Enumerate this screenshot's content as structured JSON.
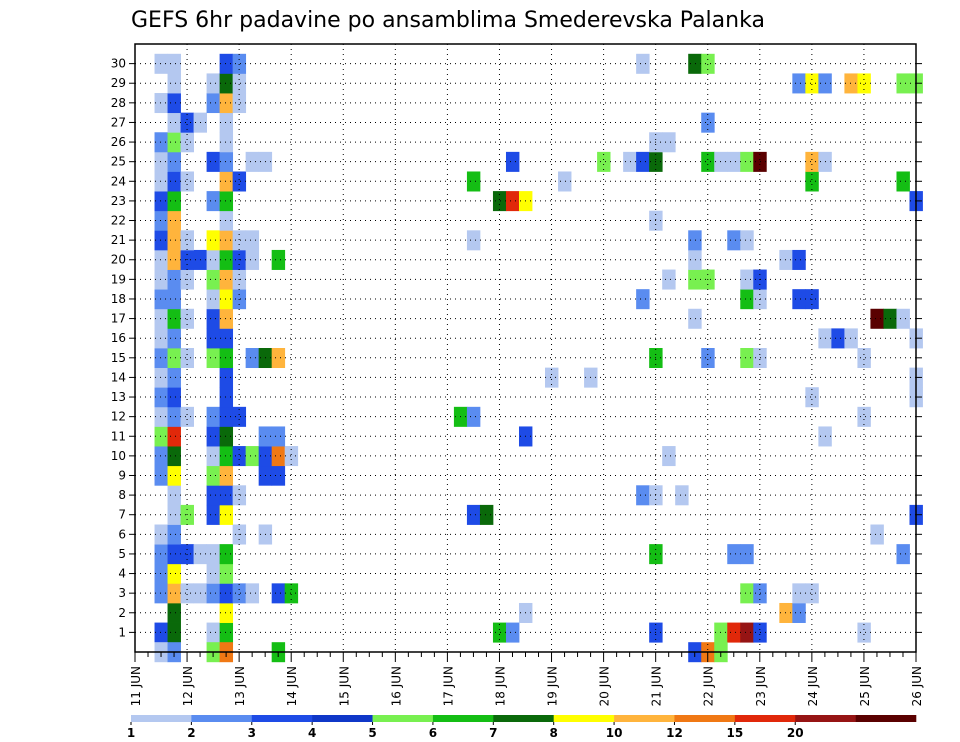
{
  "chart_data": {
    "type": "heatmap",
    "title": "GEFS 6hr padavine po ansamblima Smederevska Palanka",
    "xlabel": "",
    "ylabel": "",
    "x_tick_labels": [
      "11 JUN",
      "12 JUN",
      "13 JUN",
      "14 JUN",
      "15 JUN",
      "16 JUN",
      "17 JUN",
      "18 JUN",
      "19 JUN",
      "20 JUN",
      "21 JUN",
      "22 JUN",
      "23 JUN",
      "24 JUN",
      "25 JUN",
      "26 JUN"
    ],
    "x_steps": 60,
    "steps_per_day": 4,
    "y_tick_labels": [
      "1",
      "2",
      "3",
      "4",
      "5",
      "6",
      "7",
      "8",
      "9",
      "10",
      "11",
      "12",
      "13",
      "14",
      "15",
      "16",
      "17",
      "18",
      "19",
      "20",
      "21",
      "22",
      "23",
      "24",
      "25",
      "26",
      "27",
      "28",
      "29",
      "30"
    ],
    "grid": true,
    "legend": {
      "placement": "bottom",
      "thresholds": [
        "1",
        "2",
        "3",
        "4",
        "5",
        "6",
        "7",
        "8",
        "10",
        "12",
        "15",
        "20"
      ],
      "colors": [
        "#b4c8f0",
        "#5a8cf0",
        "#1e4be6",
        "#0f37c8",
        "#78f050",
        "#14be14",
        "#0a690a",
        "#ffff00",
        "#ffb43c",
        "#f07814",
        "#e1280a",
        "#961414",
        "#5a0000"
      ]
    },
    "cells": [
      {
        "m": 1,
        "t": 2,
        "c": 2
      },
      {
        "m": 1,
        "t": 3,
        "c": 6
      },
      {
        "m": 1,
        "t": 6,
        "c": 0
      },
      {
        "m": 1,
        "t": 7,
        "c": 5
      },
      {
        "m": 1,
        "t": 28,
        "c": 5
      },
      {
        "m": 1,
        "t": 29,
        "c": 1
      },
      {
        "m": 1,
        "t": 40,
        "c": 2
      },
      {
        "m": 1,
        "t": 45,
        "c": 4
      },
      {
        "m": 1,
        "t": 46,
        "c": 10
      },
      {
        "m": 1,
        "t": 47,
        "c": 11
      },
      {
        "m": 1,
        "t": 48,
        "c": 2
      },
      {
        "m": 1,
        "t": 56,
        "c": 0
      },
      {
        "m": 2,
        "t": 3,
        "c": 6
      },
      {
        "m": 2,
        "t": 7,
        "c": 7
      },
      {
        "m": 2,
        "t": 30,
        "c": 0
      },
      {
        "m": 2,
        "t": 50,
        "c": 8
      },
      {
        "m": 2,
        "t": 51,
        "c": 1
      },
      {
        "m": 3,
        "t": 2,
        "c": 1
      },
      {
        "m": 3,
        "t": 3,
        "c": 8
      },
      {
        "m": 3,
        "t": 4,
        "c": 0
      },
      {
        "m": 3,
        "t": 5,
        "c": 0
      },
      {
        "m": 3,
        "t": 6,
        "c": 1
      },
      {
        "m": 3,
        "t": 7,
        "c": 2
      },
      {
        "m": 3,
        "t": 8,
        "c": 1
      },
      {
        "m": 3,
        "t": 9,
        "c": 0
      },
      {
        "m": 3,
        "t": 11,
        "c": 2
      },
      {
        "m": 3,
        "t": 12,
        "c": 5
      },
      {
        "m": 3,
        "t": 47,
        "c": 4
      },
      {
        "m": 3,
        "t": 48,
        "c": 1
      },
      {
        "m": 3,
        "t": 51,
        "c": 0
      },
      {
        "m": 3,
        "t": 52,
        "c": 0
      },
      {
        "m": 4,
        "t": 2,
        "c": 1
      },
      {
        "m": 4,
        "t": 3,
        "c": 7
      },
      {
        "m": 4,
        "t": 6,
        "c": 0
      },
      {
        "m": 4,
        "t": 7,
        "c": 4
      },
      {
        "m": 5,
        "t": 2,
        "c": 1
      },
      {
        "m": 5,
        "t": 3,
        "c": 2
      },
      {
        "m": 5,
        "t": 4,
        "c": 2
      },
      {
        "m": 5,
        "t": 5,
        "c": 0
      },
      {
        "m": 5,
        "t": 6,
        "c": 0
      },
      {
        "m": 5,
        "t": 7,
        "c": 5
      },
      {
        "m": 5,
        "t": 40,
        "c": 5
      },
      {
        "m": 5,
        "t": 46,
        "c": 1
      },
      {
        "m": 5,
        "t": 47,
        "c": 1
      },
      {
        "m": 5,
        "t": 59,
        "c": 1
      },
      {
        "m": 6,
        "t": 2,
        "c": 0
      },
      {
        "m": 6,
        "t": 3,
        "c": 1
      },
      {
        "m": 6,
        "t": 8,
        "c": 0
      },
      {
        "m": 6,
        "t": 10,
        "c": 0
      },
      {
        "m": 6,
        "t": 57,
        "c": 0
      },
      {
        "m": 7,
        "t": 3,
        "c": 0
      },
      {
        "m": 7,
        "t": 4,
        "c": 4
      },
      {
        "m": 7,
        "t": 6,
        "c": 2
      },
      {
        "m": 7,
        "t": 7,
        "c": 7
      },
      {
        "m": 7,
        "t": 26,
        "c": 2
      },
      {
        "m": 7,
        "t": 27,
        "c": 6
      },
      {
        "m": 7,
        "t": 60,
        "c": 2
      },
      {
        "m": 8,
        "t": 3,
        "c": 0
      },
      {
        "m": 8,
        "t": 6,
        "c": 2
      },
      {
        "m": 8,
        "t": 7,
        "c": 2
      },
      {
        "m": 8,
        "t": 8,
        "c": 0
      },
      {
        "m": 8,
        "t": 39,
        "c": 1
      },
      {
        "m": 8,
        "t": 40,
        "c": 0
      },
      {
        "m": 8,
        "t": 42,
        "c": 0
      },
      {
        "m": 9,
        "t": 2,
        "c": 1
      },
      {
        "m": 9,
        "t": 3,
        "c": 7
      },
      {
        "m": 9,
        "t": 6,
        "c": 4
      },
      {
        "m": 9,
        "t": 7,
        "c": 8
      },
      {
        "m": 9,
        "t": 10,
        "c": 2
      },
      {
        "m": 9,
        "t": 11,
        "c": 2
      },
      {
        "m": 10,
        "t": 2,
        "c": 1
      },
      {
        "m": 10,
        "t": 3,
        "c": 6
      },
      {
        "m": 10,
        "t": 6,
        "c": 0
      },
      {
        "m": 10,
        "t": 7,
        "c": 5
      },
      {
        "m": 10,
        "t": 8,
        "c": 2
      },
      {
        "m": 10,
        "t": 9,
        "c": 4
      },
      {
        "m": 10,
        "t": 10,
        "c": 2
      },
      {
        "m": 10,
        "t": 11,
        "c": 9
      },
      {
        "m": 10,
        "t": 12,
        "c": 0
      },
      {
        "m": 10,
        "t": 41,
        "c": 0
      },
      {
        "m": 11,
        "t": 2,
        "c": 4
      },
      {
        "m": 11,
        "t": 3,
        "c": 10
      },
      {
        "m": 11,
        "t": 6,
        "c": 2
      },
      {
        "m": 11,
        "t": 7,
        "c": 6
      },
      {
        "m": 11,
        "t": 10,
        "c": 1
      },
      {
        "m": 11,
        "t": 11,
        "c": 1
      },
      {
        "m": 11,
        "t": 30,
        "c": 2
      },
      {
        "m": 11,
        "t": 53,
        "c": 0
      },
      {
        "m": 12,
        "t": 2,
        "c": 0
      },
      {
        "m": 12,
        "t": 3,
        "c": 1
      },
      {
        "m": 12,
        "t": 4,
        "c": 0
      },
      {
        "m": 12,
        "t": 6,
        "c": 1
      },
      {
        "m": 12,
        "t": 7,
        "c": 2
      },
      {
        "m": 12,
        "t": 8,
        "c": 2
      },
      {
        "m": 12,
        "t": 25,
        "c": 5
      },
      {
        "m": 12,
        "t": 26,
        "c": 1
      },
      {
        "m": 12,
        "t": 56,
        "c": 0
      },
      {
        "m": 13,
        "t": 2,
        "c": 1
      },
      {
        "m": 13,
        "t": 3,
        "c": 2
      },
      {
        "m": 13,
        "t": 7,
        "c": 2
      },
      {
        "m": 13,
        "t": 52,
        "c": 0
      },
      {
        "m": 13,
        "t": 60,
        "c": 0
      },
      {
        "m": 14,
        "t": 2,
        "c": 0
      },
      {
        "m": 14,
        "t": 3,
        "c": 1
      },
      {
        "m": 14,
        "t": 7,
        "c": 2
      },
      {
        "m": 14,
        "t": 32,
        "c": 0
      },
      {
        "m": 14,
        "t": 35,
        "c": 0
      },
      {
        "m": 14,
        "t": 60,
        "c": 0
      },
      {
        "m": 15,
        "t": 2,
        "c": 1
      },
      {
        "m": 15,
        "t": 3,
        "c": 4
      },
      {
        "m": 15,
        "t": 4,
        "c": 0
      },
      {
        "m": 15,
        "t": 6,
        "c": 4
      },
      {
        "m": 15,
        "t": 7,
        "c": 5
      },
      {
        "m": 15,
        "t": 9,
        "c": 1
      },
      {
        "m": 15,
        "t": 10,
        "c": 6
      },
      {
        "m": 15,
        "t": 11,
        "c": 8
      },
      {
        "m": 15,
        "t": 40,
        "c": 5
      },
      {
        "m": 15,
        "t": 44,
        "c": 1
      },
      {
        "m": 15,
        "t": 47,
        "c": 4
      },
      {
        "m": 15,
        "t": 48,
        "c": 0
      },
      {
        "m": 15,
        "t": 56,
        "c": 0
      },
      {
        "m": 16,
        "t": 2,
        "c": 0
      },
      {
        "m": 16,
        "t": 3,
        "c": 1
      },
      {
        "m": 16,
        "t": 6,
        "c": 2
      },
      {
        "m": 16,
        "t": 7,
        "c": 2
      },
      {
        "m": 16,
        "t": 53,
        "c": 0
      },
      {
        "m": 16,
        "t": 54,
        "c": 2
      },
      {
        "m": 16,
        "t": 55,
        "c": 0
      },
      {
        "m": 16,
        "t": 60,
        "c": 0
      },
      {
        "m": 17,
        "t": 2,
        "c": 0
      },
      {
        "m": 17,
        "t": 3,
        "c": 5
      },
      {
        "m": 17,
        "t": 4,
        "c": 0
      },
      {
        "m": 17,
        "t": 6,
        "c": 2
      },
      {
        "m": 17,
        "t": 7,
        "c": 8
      },
      {
        "m": 17,
        "t": 43,
        "c": 0
      },
      {
        "m": 17,
        "t": 57,
        "c": 12
      },
      {
        "m": 17,
        "t": 58,
        "c": 6
      },
      {
        "m": 17,
        "t": 59,
        "c": 0
      },
      {
        "m": 18,
        "t": 2,
        "c": 1
      },
      {
        "m": 18,
        "t": 3,
        "c": 1
      },
      {
        "m": 18,
        "t": 6,
        "c": 0
      },
      {
        "m": 18,
        "t": 7,
        "c": 7
      },
      {
        "m": 18,
        "t": 8,
        "c": 1
      },
      {
        "m": 18,
        "t": 39,
        "c": 1
      },
      {
        "m": 18,
        "t": 47,
        "c": 5
      },
      {
        "m": 18,
        "t": 48,
        "c": 0
      },
      {
        "m": 18,
        "t": 51,
        "c": 2
      },
      {
        "m": 18,
        "t": 52,
        "c": 2
      },
      {
        "m": 19,
        "t": 2,
        "c": 0
      },
      {
        "m": 19,
        "t": 3,
        "c": 1
      },
      {
        "m": 19,
        "t": 4,
        "c": 0
      },
      {
        "m": 19,
        "t": 6,
        "c": 4
      },
      {
        "m": 19,
        "t": 7,
        "c": 8
      },
      {
        "m": 19,
        "t": 8,
        "c": 0
      },
      {
        "m": 19,
        "t": 41,
        "c": 0
      },
      {
        "m": 19,
        "t": 43,
        "c": 4
      },
      {
        "m": 19,
        "t": 44,
        "c": 4
      },
      {
        "m": 19,
        "t": 47,
        "c": 0
      },
      {
        "m": 19,
        "t": 48,
        "c": 2
      },
      {
        "m": 20,
        "t": 2,
        "c": 0
      },
      {
        "m": 20,
        "t": 3,
        "c": 8
      },
      {
        "m": 20,
        "t": 4,
        "c": 2
      },
      {
        "m": 20,
        "t": 5,
        "c": 2
      },
      {
        "m": 20,
        "t": 6,
        "c": 0
      },
      {
        "m": 20,
        "t": 7,
        "c": 5
      },
      {
        "m": 20,
        "t": 8,
        "c": 2
      },
      {
        "m": 20,
        "t": 9,
        "c": 0
      },
      {
        "m": 20,
        "t": 11,
        "c": 5
      },
      {
        "m": 20,
        "t": 43,
        "c": 0
      },
      {
        "m": 20,
        "t": 50,
        "c": 0
      },
      {
        "m": 20,
        "t": 51,
        "c": 2
      },
      {
        "m": 21,
        "t": 2,
        "c": 2
      },
      {
        "m": 21,
        "t": 3,
        "c": 8
      },
      {
        "m": 21,
        "t": 4,
        "c": 0
      },
      {
        "m": 21,
        "t": 6,
        "c": 7
      },
      {
        "m": 21,
        "t": 7,
        "c": 8
      },
      {
        "m": 21,
        "t": 8,
        "c": 0
      },
      {
        "m": 21,
        "t": 9,
        "c": 0
      },
      {
        "m": 21,
        "t": 26,
        "c": 0
      },
      {
        "m": 21,
        "t": 43,
        "c": 1
      },
      {
        "m": 21,
        "t": 46,
        "c": 1
      },
      {
        "m": 21,
        "t": 47,
        "c": 0
      },
      {
        "m": 22,
        "t": 2,
        "c": 1
      },
      {
        "m": 22,
        "t": 3,
        "c": 8
      },
      {
        "m": 22,
        "t": 7,
        "c": 0
      },
      {
        "m": 22,
        "t": 40,
        "c": 0
      },
      {
        "m": 23,
        "t": 2,
        "c": 2
      },
      {
        "m": 23,
        "t": 3,
        "c": 5
      },
      {
        "m": 23,
        "t": 6,
        "c": 1
      },
      {
        "m": 23,
        "t": 7,
        "c": 5
      },
      {
        "m": 23,
        "t": 28,
        "c": 6
      },
      {
        "m": 23,
        "t": 29,
        "c": 10
      },
      {
        "m": 23,
        "t": 30,
        "c": 7
      },
      {
        "m": 23,
        "t": 60,
        "c": 2
      },
      {
        "m": 24,
        "t": 2,
        "c": 0
      },
      {
        "m": 24,
        "t": 3,
        "c": 2
      },
      {
        "m": 24,
        "t": 4,
        "c": 0
      },
      {
        "m": 24,
        "t": 7,
        "c": 8
      },
      {
        "m": 24,
        "t": 8,
        "c": 2
      },
      {
        "m": 24,
        "t": 26,
        "c": 5
      },
      {
        "m": 24,
        "t": 33,
        "c": 0
      },
      {
        "m": 24,
        "t": 52,
        "c": 5
      },
      {
        "m": 24,
        "t": 59,
        "c": 5
      },
      {
        "m": 25,
        "t": 2,
        "c": 0
      },
      {
        "m": 25,
        "t": 3,
        "c": 1
      },
      {
        "m": 25,
        "t": 6,
        "c": 2
      },
      {
        "m": 25,
        "t": 7,
        "c": 1
      },
      {
        "m": 25,
        "t": 9,
        "c": 0
      },
      {
        "m": 25,
        "t": 10,
        "c": 0
      },
      {
        "m": 25,
        "t": 29,
        "c": 2
      },
      {
        "m": 25,
        "t": 36,
        "c": 4
      },
      {
        "m": 25,
        "t": 38,
        "c": 0
      },
      {
        "m": 25,
        "t": 39,
        "c": 2
      },
      {
        "m": 25,
        "t": 40,
        "c": 6
      },
      {
        "m": 25,
        "t": 44,
        "c": 5
      },
      {
        "m": 25,
        "t": 45,
        "c": 0
      },
      {
        "m": 25,
        "t": 46,
        "c": 0
      },
      {
        "m": 25,
        "t": 47,
        "c": 4
      },
      {
        "m": 25,
        "t": 48,
        "c": 12
      },
      {
        "m": 25,
        "t": 52,
        "c": 8
      },
      {
        "m": 25,
        "t": 53,
        "c": 0
      },
      {
        "m": 26,
        "t": 2,
        "c": 1
      },
      {
        "m": 26,
        "t": 3,
        "c": 4
      },
      {
        "m": 26,
        "t": 4,
        "c": 0
      },
      {
        "m": 26,
        "t": 7,
        "c": 0
      },
      {
        "m": 26,
        "t": 40,
        "c": 0
      },
      {
        "m": 26,
        "t": 41,
        "c": 0
      },
      {
        "m": 27,
        "t": 3,
        "c": 0
      },
      {
        "m": 27,
        "t": 4,
        "c": 2
      },
      {
        "m": 27,
        "t": 5,
        "c": 0
      },
      {
        "m": 27,
        "t": 7,
        "c": 0
      },
      {
        "m": 27,
        "t": 44,
        "c": 1
      },
      {
        "m": 28,
        "t": 2,
        "c": 0
      },
      {
        "m": 28,
        "t": 3,
        "c": 2
      },
      {
        "m": 28,
        "t": 6,
        "c": 1
      },
      {
        "m": 28,
        "t": 7,
        "c": 8
      },
      {
        "m": 28,
        "t": 8,
        "c": 0
      },
      {
        "m": 29,
        "t": 3,
        "c": 0
      },
      {
        "m": 29,
        "t": 6,
        "c": 0
      },
      {
        "m": 29,
        "t": 7,
        "c": 6
      },
      {
        "m": 29,
        "t": 8,
        "c": 0
      },
      {
        "m": 29,
        "t": 51,
        "c": 1
      },
      {
        "m": 29,
        "t": 52,
        "c": 7
      },
      {
        "m": 29,
        "t": 53,
        "c": 1
      },
      {
        "m": 29,
        "t": 55,
        "c": 8
      },
      {
        "m": 29,
        "t": 56,
        "c": 7
      },
      {
        "m": 29,
        "t": 59,
        "c": 4
      },
      {
        "m": 29,
        "t": 60,
        "c": 4
      },
      {
        "m": 30,
        "t": 2,
        "c": 0
      },
      {
        "m": 30,
        "t": 3,
        "c": 0
      },
      {
        "m": 30,
        "t": 7,
        "c": 2
      },
      {
        "m": 30,
        "t": 8,
        "c": 1
      },
      {
        "m": 30,
        "t": 39,
        "c": 0
      },
      {
        "m": 30,
        "t": 43,
        "c": 6
      },
      {
        "m": 30,
        "t": 44,
        "c": 4
      },
      {
        "m": 0,
        "t": 2,
        "c": 0
      },
      {
        "m": 0,
        "t": 3,
        "c": 1
      },
      {
        "m": 0,
        "t": 6,
        "c": 4
      },
      {
        "m": 0,
        "t": 7,
        "c": 9
      },
      {
        "m": 0,
        "t": 11,
        "c": 5
      },
      {
        "m": 0,
        "t": 43,
        "c": 2
      },
      {
        "m": 0,
        "t": 44,
        "c": 9
      },
      {
        "m": 0,
        "t": 45,
        "c": 4
      }
    ]
  }
}
